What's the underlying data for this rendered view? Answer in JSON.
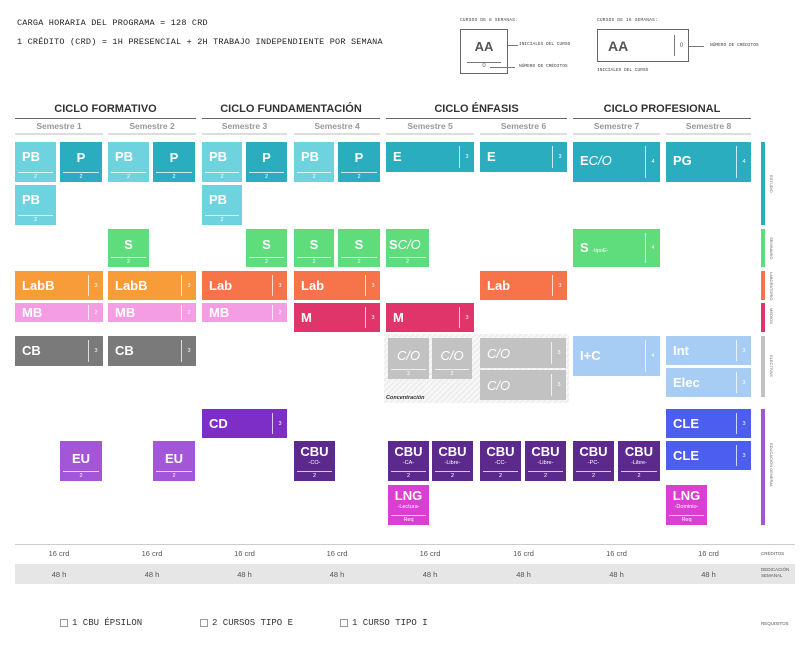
{
  "header": {
    "line1": "CARGA HORARIA DEL PROGRAMA = 128 CRD",
    "line2": "1 CRÉDITO (CRD) = 1H PRESENCIAL + 2H TRABAJO INDEPENDIENTE POR SEMANA"
  },
  "legend8": {
    "title": "CURSOS DE 8 SEMANAS:",
    "code": "AA",
    "credits": "0",
    "label_initials": "INICIALES DEL CURSO",
    "label_credits": "NÚMERO DE CRÉDITOS"
  },
  "legend16": {
    "title": "CURSOS DE 16 SEMANAS:",
    "code": "AA",
    "credits": "0",
    "label_initials": "INICIALES DEL CURSO",
    "label_credits": "NÚMERO DE CRÉDITOS"
  },
  "cycles": [
    "CICLO FORMATIVO",
    "CICLO FUNDAMENTACIÓN",
    "CICLO ÉNFASIS",
    "CICLO PROFESIONAL"
  ],
  "semesters": [
    "Semestre 1",
    "Semestre 2",
    "Semestre 3",
    "Semestre 4",
    "Semestre 5",
    "Semestre 6",
    "Semestre 7",
    "Semestre 8"
  ],
  "courses": {
    "pb1": {
      "code": "PB",
      "cred": "2"
    },
    "p1": {
      "code": "P",
      "cred": "2"
    },
    "pb2": {
      "code": "PB",
      "cred": "2"
    },
    "p2": {
      "code": "P",
      "cred": "2"
    },
    "pb3": {
      "code": "PB",
      "cred": "2"
    },
    "p3": {
      "code": "P",
      "cred": "2"
    },
    "pb4": {
      "code": "PB",
      "cred": "2"
    },
    "p4": {
      "code": "P",
      "cred": "2"
    },
    "pb1b": {
      "code": "PB",
      "cred": "2"
    },
    "pb3b": {
      "code": "PB",
      "cred": "2"
    },
    "e5": {
      "code": "E",
      "cred": "3"
    },
    "e6": {
      "code": "E",
      "cred": "3"
    },
    "eco7": {
      "code1": "E",
      "code2": "C/O",
      "cred": "4"
    },
    "pg8": {
      "code": "PG",
      "cred": "4"
    },
    "s2": {
      "code": "S",
      "cred": "2"
    },
    "s3": {
      "code": "S",
      "cred": "2"
    },
    "s4a": {
      "code": "S",
      "cred": "2"
    },
    "s4b": {
      "code": "S",
      "cred": "2"
    },
    "sco5": {
      "code1": "S",
      "code2": "C/O",
      "cred": "2"
    },
    "s7": {
      "code": "S",
      "sub": "-tipoE-",
      "cred": "4"
    },
    "labb1": {
      "code": "LabB",
      "cred": "3"
    },
    "labb2": {
      "code": "LabB",
      "cred": "3"
    },
    "lab3": {
      "code": "Lab",
      "cred": "3"
    },
    "lab4": {
      "code": "Lab",
      "cred": "3"
    },
    "lab6": {
      "code": "Lab",
      "cred": "3"
    },
    "mb1": {
      "code": "MB",
      "cred": "2"
    },
    "mb2": {
      "code": "MB",
      "cred": "2"
    },
    "mb3": {
      "code": "MB",
      "cred": "2"
    },
    "m4": {
      "code": "M",
      "cred": "3"
    },
    "m5": {
      "code": "M",
      "cred": "3"
    },
    "cb1": {
      "code": "CB",
      "cred": "3"
    },
    "cb2": {
      "code": "CB",
      "cred": "3"
    },
    "co5a": {
      "code": "C/O",
      "cred": "2"
    },
    "co5b": {
      "code": "C/O",
      "cred": "2"
    },
    "co6a": {
      "code": "C/O",
      "cred": "3"
    },
    "co6b": {
      "code": "C/O",
      "cred": "3"
    },
    "concentracion": "Concentración",
    "ic7": {
      "code": "I+C",
      "cred": "4"
    },
    "int8": {
      "code": "Int",
      "cred": "3"
    },
    "elec8": {
      "code": "Elec",
      "cred": "3"
    },
    "cd3": {
      "code": "CD",
      "cred": "3"
    },
    "cle8a": {
      "code": "CLE",
      "cred": "3"
    },
    "cle8b": {
      "code": "CLE",
      "cred": "3"
    },
    "eu1": {
      "code": "EU",
      "cred": "2"
    },
    "eu2": {
      "code": "EU",
      "cred": "2"
    },
    "cbu4": {
      "code": "CBU",
      "sub": "-CO-",
      "cred": "2"
    },
    "cbu5a": {
      "code": "CBU",
      "sub": "-CA-",
      "cred": "2"
    },
    "cbu5b": {
      "code": "CBU",
      "sub": "-Libre-",
      "cred": "2"
    },
    "cbu6a": {
      "code": "CBU",
      "sub": "-CC-",
      "cred": "2"
    },
    "cbu6b": {
      "code": "CBU",
      "sub": "-Libre-",
      "cred": "2"
    },
    "cbu7a": {
      "code": "CBU",
      "sub": "-PC-",
      "cred": "2"
    },
    "cbu7b": {
      "code": "CBU",
      "sub": "-Libre-",
      "cred": "2"
    },
    "lng5": {
      "code": "LNG",
      "sub": "-Lectura-",
      "cred": "Req"
    },
    "lng8": {
      "code": "LNG",
      "sub": "-Dominio-",
      "cred": "Req"
    }
  },
  "side_labels": [
    "ESTUDIO",
    "SEMINARIO",
    "LABORATORIO",
    "MEDIOS",
    "ELECTIVAS",
    "EDUCACIÓN GENERAL"
  ],
  "credits_row": [
    "16 crd",
    "16 crd",
    "16 crd",
    "16 crd",
    "16 crd",
    "16 crd",
    "16 crd",
    "16 crd"
  ],
  "hours_row": [
    "48 h",
    "48 h",
    "48 h",
    "48 h",
    "48 h",
    "48 h",
    "48 h",
    "48 h"
  ],
  "row_labels": {
    "credits": "CRÉDITOS",
    "hours": "DEDICACIÓN SEMANAL",
    "requisites": "REQUISITOS"
  },
  "requisites": [
    "1 CBU ÉPSILON",
    "2 CURSOS TIPO E",
    "1 CURSO TIPO I"
  ],
  "colors": {
    "teal": "#2aaebf",
    "teal_light": "#6fd3df",
    "green": "#5fdc7c",
    "orange": "#f89c3a",
    "orange_red": "#f7734a",
    "pink": "#f59de4",
    "crimson": "#e0356a",
    "gray_dark": "#7a7a7a",
    "gray_light": "#c2c2c2",
    "light_blue": "#a8cdf5",
    "purple": "#7d2ec7",
    "blue": "#4c5ef0",
    "violet": "#a456d8",
    "dark_purple": "#5c2a8c",
    "magenta": "#d93fd1"
  }
}
